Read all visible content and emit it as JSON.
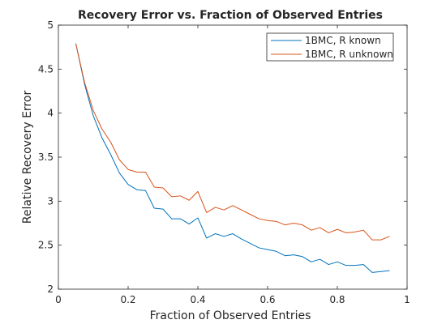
{
  "chart_data": {
    "type": "line",
    "title": "Recovery Error vs. Fraction of Observed Entries",
    "xlabel": "Fraction of Observed Entries",
    "ylabel": "Relative Recovery Error",
    "xlim": [
      0,
      1
    ],
    "ylim": [
      2,
      5
    ],
    "xticks": [
      0,
      0.2,
      0.4,
      0.6,
      0.8,
      1
    ],
    "yticks": [
      2,
      2.5,
      3,
      3.5,
      4,
      4.5,
      5
    ],
    "xtick_labels": [
      "0",
      "0.2",
      "0.4",
      "0.6",
      "0.8",
      "1"
    ],
    "ytick_labels": [
      "2",
      "2.5",
      "3",
      "3.5",
      "4",
      "4.5",
      "5"
    ],
    "grid": false,
    "legend_position": "top-right",
    "x": [
      0.05,
      0.075,
      0.1,
      0.125,
      0.15,
      0.175,
      0.2,
      0.225,
      0.25,
      0.275,
      0.3,
      0.325,
      0.35,
      0.375,
      0.4,
      0.425,
      0.45,
      0.475,
      0.5,
      0.525,
      0.55,
      0.575,
      0.6,
      0.625,
      0.65,
      0.675,
      0.7,
      0.725,
      0.75,
      0.775,
      0.8,
      0.825,
      0.85,
      0.875,
      0.9,
      0.925,
      0.95
    ],
    "series": [
      {
        "name": "1BMC, R known",
        "color": "#0072BD",
        "values": [
          4.79,
          4.33,
          3.97,
          3.72,
          3.53,
          3.32,
          3.19,
          3.13,
          3.12,
          2.92,
          2.91,
          2.8,
          2.8,
          2.74,
          2.81,
          2.58,
          2.63,
          2.6,
          2.63,
          2.57,
          2.52,
          2.47,
          2.45,
          2.43,
          2.38,
          2.39,
          2.37,
          2.31,
          2.34,
          2.28,
          2.31,
          2.27,
          2.27,
          2.28,
          2.19,
          2.2,
          2.21
        ]
      },
      {
        "name": "1BMC, R unknown",
        "color": "#D95319",
        "values": [
          4.79,
          4.35,
          4.03,
          3.82,
          3.67,
          3.47,
          3.36,
          3.33,
          3.33,
          3.16,
          3.15,
          3.05,
          3.06,
          3.01,
          3.11,
          2.87,
          2.93,
          2.9,
          2.95,
          2.9,
          2.85,
          2.8,
          2.78,
          2.77,
          2.73,
          2.75,
          2.73,
          2.67,
          2.7,
          2.64,
          2.68,
          2.64,
          2.65,
          2.67,
          2.56,
          2.56,
          2.6
        ]
      }
    ]
  }
}
